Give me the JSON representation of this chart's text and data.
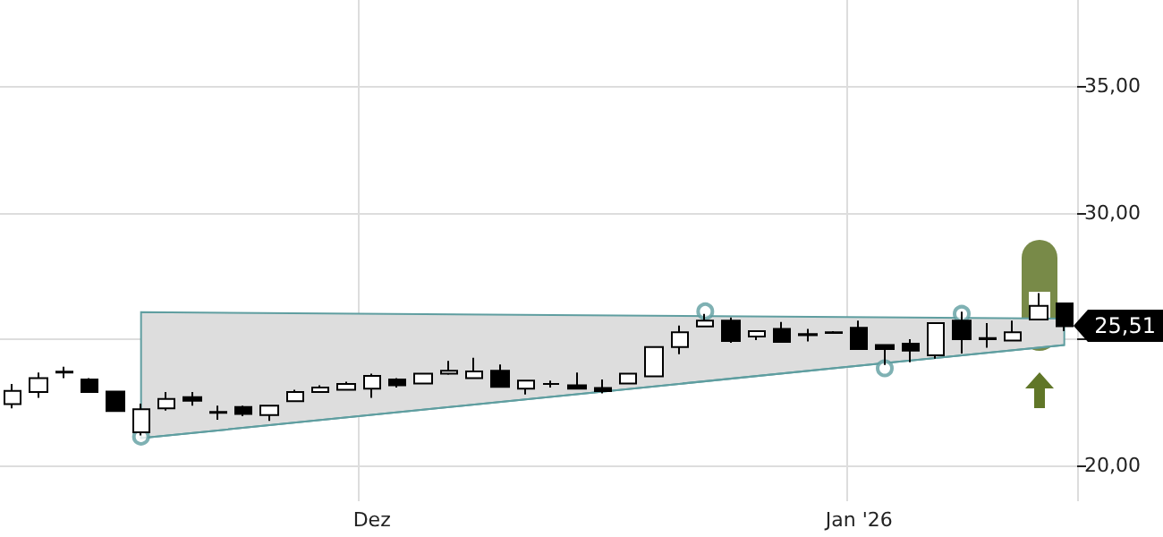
{
  "chart_data": {
    "type": "candlestick",
    "categories": [
      null,
      null,
      null,
      null,
      null,
      null,
      null,
      null,
      null,
      null,
      null,
      null,
      null,
      null,
      "Dez",
      null,
      null,
      null,
      null,
      null,
      null,
      null,
      null,
      null,
      null,
      null,
      null,
      null,
      null,
      null,
      null,
      null,
      null,
      "Jan '26",
      null,
      null,
      null,
      null,
      null,
      null,
      null,
      null
    ],
    "series": [
      {
        "ohlc": [
          [
            22.44,
            23.23,
            22.27,
            22.96
          ],
          [
            22.91,
            23.68,
            22.68,
            23.46
          ],
          [
            23.68,
            23.91,
            23.46,
            23.72
          ],
          [
            23.41,
            23.46,
            22.91,
            22.91
          ],
          [
            22.93,
            22.93,
            22.16,
            22.16
          ],
          [
            21.32,
            22.45,
            21.2,
            22.23
          ],
          [
            22.27,
            22.91,
            22.18,
            22.64
          ],
          [
            22.71,
            22.91,
            22.37,
            22.57
          ],
          [
            22.09,
            22.37,
            21.82,
            22.13
          ],
          [
            22.32,
            22.37,
            21.96,
            22.05
          ],
          [
            22.0,
            22.37,
            21.77,
            22.37
          ],
          [
            22.55,
            23.0,
            22.55,
            22.91
          ],
          [
            22.91,
            23.18,
            22.91,
            23.09
          ],
          [
            23.0,
            23.32,
            23.0,
            23.23
          ],
          [
            23.05,
            23.64,
            22.68,
            23.55
          ],
          [
            23.41,
            23.46,
            23.09,
            23.18
          ],
          [
            23.25,
            23.64,
            23.25,
            23.64
          ],
          [
            23.64,
            24.14,
            23.59,
            23.75
          ],
          [
            23.46,
            24.27,
            23.46,
            23.73
          ],
          [
            23.75,
            24.0,
            23.12,
            23.12
          ],
          [
            23.05,
            23.36,
            22.82,
            23.36
          ],
          [
            23.23,
            23.36,
            23.09,
            23.23
          ],
          [
            23.18,
            23.68,
            23.05,
            23.05
          ],
          [
            23.07,
            23.41,
            22.86,
            22.95
          ],
          [
            23.25,
            23.64,
            23.25,
            23.64
          ],
          [
            23.53,
            24.69,
            23.53,
            24.69
          ],
          [
            24.69,
            25.54,
            24.41,
            25.27
          ],
          [
            25.5,
            26.0,
            25.5,
            25.73
          ],
          [
            25.73,
            25.86,
            24.86,
            24.93
          ],
          [
            25.11,
            25.32,
            24.96,
            25.32
          ],
          [
            25.41,
            25.68,
            24.89,
            24.89
          ],
          [
            25.16,
            25.41,
            24.91,
            25.2
          ],
          [
            25.25,
            25.32,
            25.25,
            25.27
          ],
          [
            25.45,
            25.73,
            24.61,
            24.61
          ],
          [
            24.77,
            24.77,
            23.98,
            24.61
          ],
          [
            24.82,
            25.0,
            24.09,
            24.55
          ],
          [
            24.36,
            25.64,
            24.23,
            25.64
          ],
          [
            25.73,
            26.09,
            24.43,
            25.0
          ],
          [
            25.0,
            25.64,
            24.66,
            25.04
          ],
          [
            24.95,
            25.73,
            24.95,
            25.27
          ],
          [
            25.78,
            26.82,
            25.78,
            26.32
          ],
          [
            26.41,
            26.41,
            25.32,
            25.51
          ]
        ],
        "colors": [
          "#ffffff",
          "#ffffff",
          "#000000",
          "#000000",
          "#000000",
          "#ffffff",
          "#ffffff",
          "#000000",
          "#000000",
          "#000000",
          "#ffffff",
          "#ffffff",
          "#ffffff",
          "#ffffff",
          "#ffffff",
          "#000000",
          "#ffffff",
          "#ffffff",
          "#ffffff",
          "#000000",
          "#ffffff",
          "#000000",
          "#000000",
          "#000000",
          "#ffffff",
          "#ffffff",
          "#ffffff",
          "#ffffff",
          "#000000",
          "#ffffff",
          "#000000",
          "#000000",
          "#000000",
          "#000000",
          "#000000",
          "#000000",
          "#ffffff",
          "#000000",
          "#000000",
          "#ffffff",
          "#ffffff",
          "#000000"
        ]
      },
      {
        "type": "line",
        "color": "#5f9ea0",
        "values": [
          null,
          null,
          null,
          null,
          null,
          21.09,
          null,
          null,
          null,
          null,
          null,
          null,
          null,
          null,
          null,
          null,
          null,
          null,
          null,
          null,
          null,
          null,
          null,
          null,
          null,
          null,
          null,
          null,
          null,
          null,
          null,
          null,
          null,
          null,
          null,
          null,
          null,
          null,
          null,
          null,
          null,
          24.77
        ],
        "lower": [
          null,
          null,
          null,
          null,
          null,
          21.09,
          null,
          null,
          null,
          null,
          null,
          null,
          null,
          null,
          null,
          null,
          null,
          null,
          null,
          null,
          null,
          null,
          null,
          null,
          null,
          null,
          null,
          null,
          null,
          null,
          null,
          null,
          null,
          null,
          null,
          null,
          null,
          null,
          null,
          null,
          null,
          24.77
        ],
        "upper": [
          null,
          null,
          null,
          null,
          null,
          26.07,
          null,
          null,
          null,
          null,
          null,
          null,
          null,
          null,
          null,
          null,
          null,
          null,
          null,
          null,
          null,
          null,
          null,
          null,
          null,
          null,
          null,
          null,
          null,
          null,
          null,
          null,
          null,
          null,
          null,
          null,
          null,
          null,
          null,
          null,
          null,
          25.81
        ]
      },
      {
        "type": "scatter",
        "color": "#5f9ea0",
        "marker": "circle",
        "values": [
          null,
          null,
          null,
          null,
          null,
          21.15,
          null,
          null,
          null,
          null,
          null,
          null,
          null,
          null,
          null,
          null,
          null,
          null,
          null,
          null,
          null,
          null,
          null,
          null,
          null,
          null,
          null,
          26.1,
          null,
          null,
          null,
          null,
          null,
          null,
          23.85,
          null,
          null,
          26.0,
          null,
          null,
          null,
          null
        ]
      }
    ],
    "ylim": [
      18.6,
      38.4
    ],
    "yticks": [
      {
        "value": 20,
        "label": "20,00"
      },
      {
        "value": 25,
        "label": null
      },
      {
        "value": 30,
        "label": "30,00"
      },
      {
        "value": 35,
        "label": "35,00"
      }
    ],
    "annotations": [
      "25,51"
    ],
    "grid": true
  }
}
